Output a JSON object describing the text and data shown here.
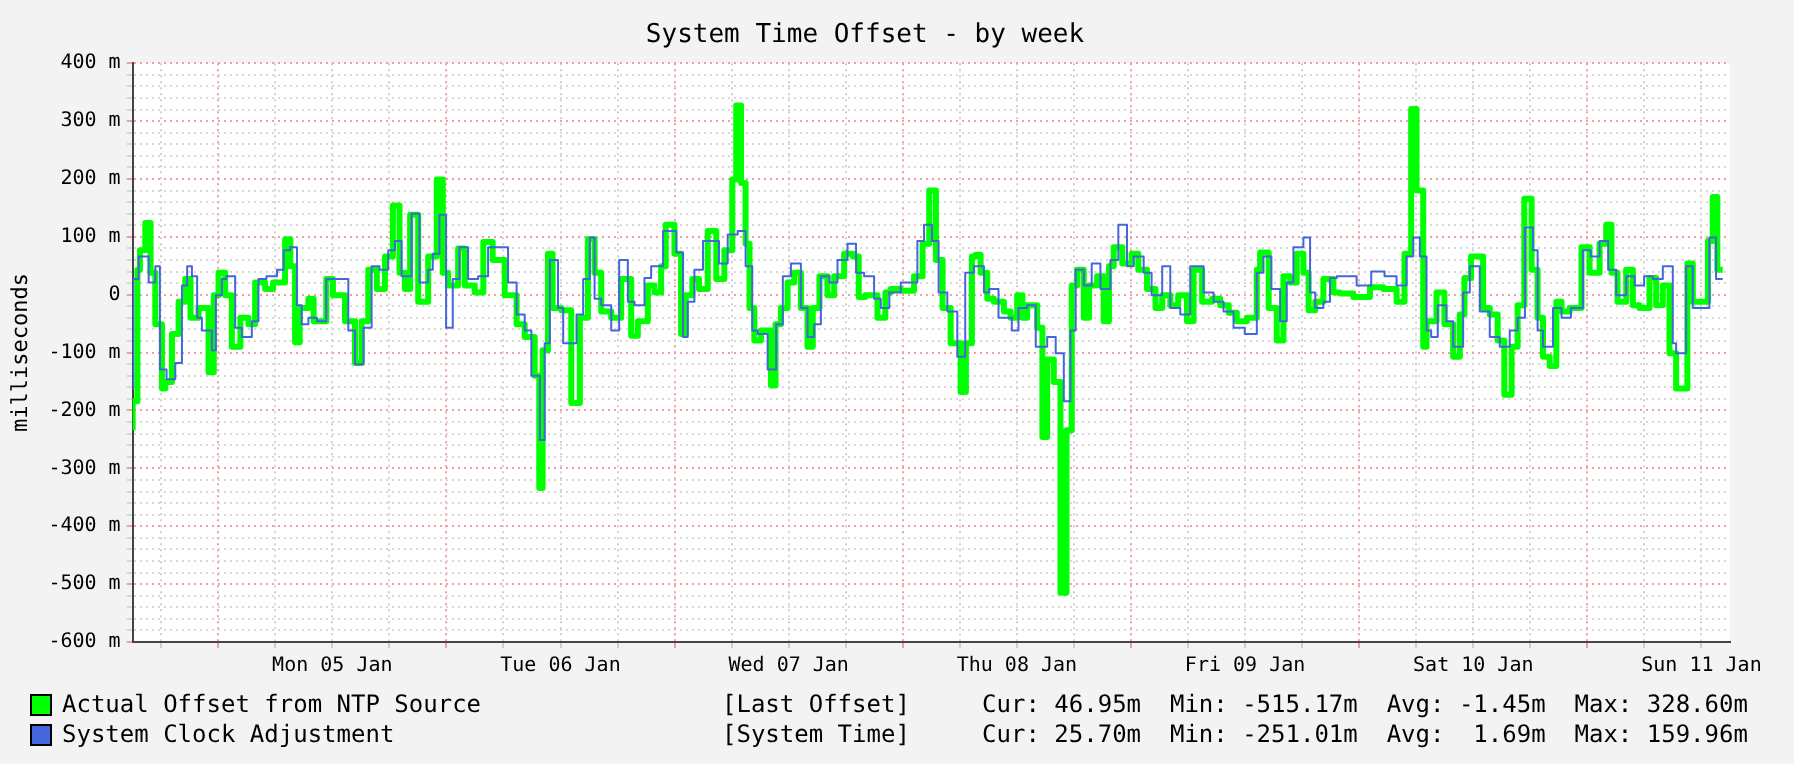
{
  "chart_data": {
    "type": "step",
    "title": "System Time Offset - by week",
    "ylabel": "milliseconds",
    "xlim": [
      "--01-04T15:00",
      "--01-11T15:00"
    ],
    "xticks": [
      {
        "value": "--01-04T18:00",
        "label": null
      },
      {
        "value": "--01-05T00:00",
        "label": null
      },
      {
        "value": "--01-05T06:00",
        "label": null
      },
      {
        "value": "--01-05T12:00",
        "label": "Mon 05 Jan"
      },
      {
        "value": "--01-05T18:00",
        "label": null
      },
      {
        "value": "--01-06T00:00",
        "label": null
      },
      {
        "value": "--01-06T06:00",
        "label": null
      },
      {
        "value": "--01-06T12:00",
        "label": "Tue 06 Jan"
      },
      {
        "value": "--01-06T18:00",
        "label": null
      },
      {
        "value": "--01-07T00:00",
        "label": null
      },
      {
        "value": "--01-07T06:00",
        "label": null
      },
      {
        "value": "--01-07T12:00",
        "label": "Wed 07 Jan"
      },
      {
        "value": "--01-07T18:00",
        "label": null
      },
      {
        "value": "--01-08T00:00",
        "label": null
      },
      {
        "value": "--01-08T06:00",
        "label": null
      },
      {
        "value": "--01-08T12:00",
        "label": "Thu 08 Jan"
      },
      {
        "value": "--01-08T18:00",
        "label": null
      },
      {
        "value": "--01-09T00:00",
        "label": null
      },
      {
        "value": "--01-09T06:00",
        "label": null
      },
      {
        "value": "--01-09T12:00",
        "label": "Fri 09 Jan"
      },
      {
        "value": "--01-09T18:00",
        "label": null
      },
      {
        "value": "--01-10T00:00",
        "label": null
      },
      {
        "value": "--01-10T06:00",
        "label": null
      },
      {
        "value": "--01-10T12:00",
        "label": "Sat 10 Jan"
      },
      {
        "value": "--01-10T18:00",
        "label": null
      },
      {
        "value": "--01-11T00:00",
        "label": null
      },
      {
        "value": "--01-11T06:00",
        "label": null
      },
      {
        "value": "--01-11T12:00",
        "label": "Sun 11 Jan"
      }
    ],
    "ylim": [
      -600,
      400
    ],
    "yticks": [
      {
        "value": -600,
        "label": "-600 m"
      },
      {
        "value": -580,
        "label": null
      },
      {
        "value": -560,
        "label": null
      },
      {
        "value": -540,
        "label": null
      },
      {
        "value": -520,
        "label": null
      },
      {
        "value": -500,
        "label": "-500 m"
      },
      {
        "value": -480,
        "label": null
      },
      {
        "value": -460,
        "label": null
      },
      {
        "value": -440,
        "label": null
      },
      {
        "value": -420,
        "label": null
      },
      {
        "value": -400,
        "label": "-400 m"
      },
      {
        "value": -380,
        "label": null
      },
      {
        "value": -360,
        "label": null
      },
      {
        "value": -340,
        "label": null
      },
      {
        "value": -320,
        "label": null
      },
      {
        "value": -300,
        "label": "-300 m"
      },
      {
        "value": -280,
        "label": null
      },
      {
        "value": -260,
        "label": null
      },
      {
        "value": -240,
        "label": null
      },
      {
        "value": -220,
        "label": null
      },
      {
        "value": -200,
        "label": "-200 m"
      },
      {
        "value": -180,
        "label": null
      },
      {
        "value": -160,
        "label": null
      },
      {
        "value": -140,
        "label": null
      },
      {
        "value": -120,
        "label": null
      },
      {
        "value": -100,
        "label": "-100 m"
      },
      {
        "value": -80,
        "label": null
      },
      {
        "value": -60,
        "label": null
      },
      {
        "value": -40,
        "label": null
      },
      {
        "value": -20,
        "label": null
      },
      0,
      {
        "value": 20,
        "label": null
      },
      {
        "value": 40,
        "label": null
      },
      {
        "value": 60,
        "label": null
      },
      {
        "value": 80,
        "label": null
      },
      {
        "value": 100,
        "label": "100 m"
      },
      {
        "value": 120,
        "label": null
      },
      {
        "value": 140,
        "label": null
      },
      {
        "value": 160,
        "label": null
      },
      {
        "value": 180,
        "label": null
      },
      {
        "value": 200,
        "label": "200 m"
      },
      {
        "value": 220,
        "label": null
      },
      {
        "value": 240,
        "label": null
      },
      {
        "value": 260,
        "label": null
      },
      {
        "value": 280,
        "label": null
      },
      {
        "value": 300,
        "label": "300 m"
      },
      {
        "value": 320,
        "label": null
      },
      {
        "value": 340,
        "label": null
      },
      {
        "value": 360,
        "label": null
      },
      {
        "value": 380,
        "label": null
      },
      {
        "value": 400,
        "label": "400 m"
      }
    ],
    "grid": true,
    "legend": "bottom",
    "annotations": [
      "[Last Offset]     Cur: 46.95m  Min: -515.17m  Avg: -1.45m  Max: 328.60m",
      "[System Time]     Cur: 25.70m  Min: -251.01m  Avg:  1.69m  Max: 159.96m"
    ],
    "series": [
      {
        "name": "Actual Offset from NTP Source",
        "color": "#00ff00",
        "x": [
          "--01-04T15:00",
          "--01-04T15:30",
          "--01-04T15:46",
          "--01-04T16:20",
          "--01-04T16:53",
          "--01-04T17:23",
          "--01-04T18:05",
          "--01-04T18:26",
          "--01-04T19:08",
          "--01-04T19:50",
          "--01-04T20:32",
          "--01-04T21:05",
          "--01-04T21:56",
          "--01-04T22:59",
          "--01-04T23:32",
          "--01-05T00:02",
          "--01-05T00:44",
          "--01-05T01:26",
          "--01-05T02:20",
          "--01-05T03:11",
          "--01-05T03:53",
          "--01-05T04:56",
          "--01-05T05:46",
          "--01-05T07:02",
          "--01-05T07:35",
          "--01-05T08:05",
          "--01-05T08:34",
          "--01-05T09:29",
          "--01-05T10:02",
          "--01-05T11:22",
          "--01-05T12:04",
          "--01-05T13:20",
          "--01-05T14:23",
          "--01-05T15:05",
          "--01-05T15:47",
          "--01-05T16:41",
          "--01-05T17:32",
          "--01-05T18:22",
          "--01-05T19:04",
          "--01-05T19:38",
          "--01-05T20:11",
          "--01-05T21:02",
          "--01-05T22:05",
          "--01-05T22:59",
          "--01-05T23:37",
          "--01-06T00:11",
          "--01-06T01:14",
          "--01-06T01:56",
          "--01-06T02:59",
          "--01-06T03:53",
          "--01-06T04:52",
          "--01-06T06:08",
          "--01-06T07:23",
          "--01-06T08:14",
          "--01-06T09:17",
          "--01-06T09:46",
          "--01-06T10:07",
          "--01-06T10:41",
          "--01-06T11:10",
          "--01-06T12:05",
          "--01-06T13:08",
          "--01-06T14:02",
          "--01-06T14:53",
          "--01-06T15:35",
          "--01-06T16:17",
          "--01-06T17:20",
          "--01-06T18:23",
          "--01-06T19:26",
          "--01-06T20:08",
          "--01-06T21:11",
          "--01-06T21:53",
          "--01-06T22:35",
          "--01-06T23:04",
          "--01-06T23:59",
          "--01-07T00:41",
          "--01-07T01:10",
          "--01-07T01:52",
          "--01-07T02:34",
          "--01-07T03:29",
          "--01-07T04:23",
          "--01-07T05:14",
          "--01-07T06:04",
          "--01-07T06:29",
          "--01-07T06:59",
          "--01-07T07:28",
          "--01-07T07:53",
          "--01-07T08:23",
          "--01-07T09:05",
          "--01-07T10:08",
          "--01-07T10:37",
          "--01-07T11:11",
          "--01-07T11:53",
          "--01-07T12:35",
          "--01-07T13:17",
          "--01-07T13:59",
          "--01-07T14:32",
          "--01-07T15:14",
          "--01-07T16:05",
          "--01-07T16:47",
          "--01-07T17:50",
          "--01-07T18:44",
          "--01-07T19:22",
          "--01-07T20:04",
          "--01-07T21:20",
          "--01-07T22:10",
          "--01-07T22:44",
          "--01-07T23:47",
          "--01-08T01:11",
          "--01-08T02:05",
          "--01-08T02:47",
          "--01-08T03:29",
          "--01-08T04:11",
          "--01-08T05:02",
          "--01-08T06:05",
          "--01-08T06:38",
          "--01-08T07:16",
          "--01-08T07:41",
          "--01-08T08:11",
          "--01-08T08:53",
          "--01-08T09:35",
          "--01-08T10:38",
          "--01-08T11:20",
          "--01-08T12:02",
          "--01-08T12:35",
          "--01-08T13:05",
          "--01-08T14:08",
          "--01-08T14:41",
          "--01-08T15:11",
          "--01-08T15:53",
          "--01-08T16:35",
          "--01-08T17:13",
          "--01-08T17:46",
          "--01-08T18:20",
          "--01-08T19:02",
          "--01-08T19:35",
          "--01-08T20:26",
          "--01-08T21:08",
          "--01-08T21:41",
          "--01-08T22:11",
          "--01-08T23:05",
          "--01-09T00:04",
          "--01-09T00:46",
          "--01-09T01:41",
          "--01-09T02:35",
          "--01-09T03:17",
          "--01-09T04:08",
          "--01-09T04:58",
          "--01-09T05:53",
          "--01-09T06:35",
          "--01-09T07:29",
          "--01-09T08:32",
          "--01-09T09:23",
          "--01-09T10:17",
          "--01-09T11:08",
          "--01-09T12:11",
          "--01-09T13:14",
          "--01-09T13:35",
          "--01-09T14:29",
          "--01-09T15:20",
          "--01-09T16:02",
          "--01-09T16:44",
          "--01-09T17:26",
          "--01-09T18:08",
          "--01-09T18:41",
          "--01-09T19:23",
          "--01-09T20:14",
          "--01-09T21:17",
          "--01-09T21:59",
          "--01-09T23:23",
          "--01-10T01:08",
          "--01-10T02:32",
          "--01-10T03:56",
          "--01-10T04:46",
          "--01-10T05:28",
          "--01-10T06:02",
          "--01-10T06:44",
          "--01-10T07:05",
          "--01-10T08:08",
          "--01-10T08:58",
          "--01-10T09:53",
          "--01-10T10:35",
          "--01-10T11:04",
          "--01-10T11:46",
          "--01-10T13:02",
          "--01-10T13:44",
          "--01-10T14:34",
          "--01-10T15:16",
          "--01-10T16:02",
          "--01-10T16:40",
          "--01-10T17:22",
          "--01-10T18:08",
          "--01-10T18:46",
          "--01-10T19:20",
          "--01-10T20:02",
          "--01-10T20:44",
          "--01-10T21:17",
          "--01-10T22:08",
          "--01-10T23:23",
          "--01-11T00:14",
          "--01-11T01:17",
          "--01-11T01:59",
          "--01-11T02:32",
          "--01-11T03:10",
          "--01-11T04:05",
          "--01-11T04:47",
          "--01-11T05:29",
          "--01-11T06:32",
          "--01-11T07:14",
          "--01-11T07:56",
          "--01-11T08:38",
          "--01-11T09:20",
          "--01-11T10:31",
          "--01-11T11:05",
          "--01-11T11:47",
          "--01-11T12:41",
          "--01-11T13:11",
          "--01-11T13:40",
          "--01-11T14:14"
        ],
        "values": [
          -234,
          -184,
          43,
          77,
          124,
          38,
          -51,
          -162,
          -151,
          -68,
          -12,
          27,
          -40,
          -23,
          -134,
          -1,
          38,
          -1,
          -90,
          -40,
          -51,
          21,
          10,
          21,
          96,
          49,
          -82,
          -23,
          -7,
          -46,
          27,
          -1,
          -46,
          -118,
          -46,
          43,
          10,
          66,
          154,
          38,
          10,
          138,
          -12,
          66,
          199,
          38,
          16,
          80,
          16,
          4,
          91,
          60,
          -1,
          -51,
          -73,
          -140,
          -334,
          -96,
          71,
          -23,
          -27,
          -187,
          -40,
          96,
          38,
          -29,
          -40,
          27,
          -71,
          -46,
          16,
          4,
          49,
          121,
          71,
          -68,
          -1,
          27,
          10,
          110,
          27,
          77,
          199,
          327,
          193,
          88,
          -23,
          -79,
          -62,
          -157,
          -51,
          -23,
          21,
          38,
          -23,
          -90,
          -23,
          32,
          -1,
          32,
          71,
          66,
          -4,
          -1,
          -40,
          4,
          10,
          7,
          32,
          88,
          180,
          60,
          -23,
          -84,
          -168,
          -84,
          66,
          69,
          38,
          -7,
          -12,
          -29,
          -40,
          -1,
          -40,
          -18,
          -57,
          -246,
          -112,
          -151,
          -515,
          -234,
          16,
          43,
          -40,
          16,
          32,
          -46,
          49,
          82,
          54,
          71,
          43,
          10,
          -23,
          -1,
          -18,
          -1,
          -46,
          43,
          -12,
          -7,
          -18,
          -31,
          -46,
          -40,
          43,
          73,
          -23,
          -79,
          32,
          21,
          71,
          38,
          -27,
          -12,
          27,
          4,
          2,
          -4,
          13,
          10,
          -12,
          71,
          321,
          180,
          -90,
          -46,
          4,
          -51,
          -107,
          -34,
          29,
          66,
          -23,
          -34,
          -79,
          -173,
          -90,
          -18,
          166,
          43,
          -40,
          -107,
          -123,
          -12,
          -29,
          -23,
          82,
          38,
          88,
          121,
          38,
          -12,
          43,
          -18,
          -23,
          29,
          -18,
          16,
          -101,
          -162,
          54,
          -12,
          -12,
          93,
          169,
          43
        ]
      },
      {
        "name": "System Clock Adjustment",
        "color": "#4466dd",
        "x": [
          "--01-04T15:00",
          "--01-04T15:04",
          "--01-04T15:38",
          "--01-04T16:41",
          "--01-04T17:23",
          "--01-04T17:52",
          "--01-04T18:34",
          "--01-04T19:29",
          "--01-04T20:11",
          "--01-04T20:44",
          "--01-04T21:14",
          "--01-04T21:47",
          "--01-04T22:17",
          "--01-04T23:20",
          "--01-04T23:45",
          "--01-05T00:23",
          "--01-05T00:52",
          "--01-05T01:47",
          "--01-05T02:29",
          "--01-05T03:32",
          "--01-05T04:14",
          "--01-05T05:04",
          "--01-05T06:11",
          "--01-05T06:53",
          "--01-05T07:35",
          "--01-05T08:17",
          "--01-05T08:47",
          "--01-05T09:29",
          "--01-05T10:23",
          "--01-05T11:22",
          "--01-05T12:29",
          "--01-05T13:41",
          "--01-05T14:23",
          "--01-05T15:17",
          "--01-05T16:08",
          "--01-05T16:58",
          "--01-05T17:53",
          "--01-05T18:35",
          "--01-05T19:17",
          "--01-05T20:20",
          "--01-05T21:10",
          "--01-05T22:05",
          "--01-05T22:34",
          "--01-05T23:16",
          "--01-05T23:58",
          "--01-06T00:40",
          "--01-06T01:22",
          "--01-06T02:17",
          "--01-06T03:20",
          "--01-06T04:23",
          "--01-06T05:26",
          "--01-06T06:29",
          "--01-06T07:23",
          "--01-06T08:14",
          "--01-06T08:56",
          "--01-06T09:50",
          "--01-06T10:20",
          "--01-06T10:53",
          "--01-06T11:44",
          "--01-06T12:17",
          "--01-06T13:41",
          "--01-06T14:23",
          "--01-06T15:05",
          "--01-06T15:35",
          "--01-06T16:17",
          "--01-06T17:20",
          "--01-06T18:10",
          "--01-06T19:05",
          "--01-06T19:47",
          "--01-06T20:50",
          "--01-06T21:32",
          "--01-06T22:47",
          "--01-07T00:11",
          "--01-07T00:53",
          "--01-07T01:23",
          "--01-07T02:05",
          "--01-07T02:59",
          "--01-07T04:40",
          "--01-07T05:35",
          "--01-07T06:38",
          "--01-07T07:28",
          "--01-07T08:10",
          "--01-07T08:44",
          "--01-07T09:47",
          "--01-07T10:41",
          "--01-07T11:23",
          "--01-07T12:14",
          "--01-07T13:17",
          "--01-07T13:59",
          "--01-07T14:41",
          "--01-07T15:23",
          "--01-07T16:17",
          "--01-07T17:08",
          "--01-07T18:11",
          "--01-07T19:05",
          "--01-07T19:56",
          "--01-07T20:59",
          "--01-07T21:41",
          "--01-07T22:35",
          "--01-07T23:47",
          "--01-08T01:32",
          "--01-08T02:14",
          "--01-08T03:04",
          "--01-08T03:46",
          "--01-08T04:41",
          "--01-08T05:44",
          "--01-08T06:34",
          "--01-08T07:29",
          "--01-08T08:32",
          "--01-08T09:05",
          "--01-08T10:04",
          "--01-08T11:28",
          "--01-08T12:10",
          "--01-08T13:05",
          "--01-08T13:59",
          "--01-08T15:11",
          "--01-08T16:05",
          "--01-08T16:56",
          "--01-08T17:38",
          "--01-08T18:11",
          "--01-08T19:02",
          "--01-08T19:52",
          "--01-08T20:47",
          "--01-08T21:50",
          "--01-08T22:40",
          "--01-08T23:35",
          "--01-09T00:17",
          "--01-09T01:20",
          "--01-09T02:10",
          "--01-09T03:17",
          "--01-09T04:08",
          "--01-09T05:11",
          "--01-09T06:14",
          "--01-09T07:38",
          "--01-09T08:41",
          "--01-09T09:44",
          "--01-09T10:47",
          "--01-09T11:58",
          "--01-09T13:14",
          "--01-09T13:56",
          "--01-09T14:46",
          "--01-09T15:41",
          "--01-09T16:23",
          "--01-09T17:05",
          "--01-09T18:08",
          "--01-09T18:50",
          "--01-09T19:23",
          "--01-09T20:14",
          "--01-09T20:56",
          "--01-09T21:38",
          "--01-09T23:44",
          "--01-10T01:16",
          "--01-10T02:40",
          "--01-10T03:56",
          "--01-10T04:59",
          "--01-10T05:41",
          "--01-10T06:23",
          "--01-10T07:05",
          "--01-10T07:34",
          "--01-10T08:16",
          "--01-10T09:11",
          "--01-10T09:53",
          "--01-10T10:56",
          "--01-10T11:38",
          "--01-10T12:41",
          "--01-10T13:44",
          "--01-10T14:47",
          "--01-10T15:50",
          "--01-10T16:40",
          "--01-10T17:26",
          "--01-10T18:17",
          "--01-10T18:46",
          "--01-10T19:20",
          "--01-10T20:23",
          "--01-10T21:17",
          "--01-10T22:16",
          "--01-10T23:32",
          "--01-11T00:22",
          "--01-11T01:17",
          "--01-11T02:11",
          "--01-11T03:02",
          "--01-11T04:05",
          "--01-11T04:59",
          "--01-11T05:58",
          "--01-11T06:53",
          "--01-11T07:56",
          "--01-11T08:59",
          "--01-11T09:20",
          "--01-11T10:23",
          "--01-11T11:05",
          "--01-11T11:47",
          "--01-11T12:50",
          "--01-11T13:32",
          "--01-11T14:14"
        ],
        "values": [
          -68,
          -162,
          27,
          66,
          21,
          49,
          -129,
          -146,
          -118,
          16,
          49,
          32,
          -40,
          -62,
          -96,
          -1,
          27,
          32,
          -57,
          -73,
          -46,
          27,
          32,
          43,
          77,
          82,
          -18,
          -51,
          -40,
          -46,
          27,
          27,
          -62,
          -120,
          -57,
          49,
          43,
          77,
          93,
          32,
          140,
          21,
          43,
          71,
          138,
          -57,
          27,
          82,
          27,
          32,
          82,
          82,
          21,
          -34,
          -62,
          -140,
          -251,
          -84,
          60,
          -23,
          -84,
          -34,
          27,
          99,
          -7,
          -18,
          -62,
          60,
          -12,
          -18,
          29,
          49,
          110,
          73,
          -73,
          -12,
          43,
          93,
          54,
          104,
          110,
          49,
          -62,
          -68,
          -129,
          -51,
          32,
          54,
          -23,
          -73,
          -51,
          32,
          21,
          60,
          88,
          38,
          32,
          -7,
          -23,
          4,
          21,
          93,
          121,
          93,
          4,
          -29,
          -107,
          38,
          49,
          4,
          10,
          -40,
          -62,
          -23,
          -18,
          -90,
          -73,
          -101,
          -184,
          -62,
          43,
          16,
          54,
          10,
          60,
          121,
          49,
          66,
          38,
          -1,
          49,
          -23,
          -34,
          49,
          4,
          -12,
          -29,
          -57,
          -68,
          38,
          66,
          10,
          -46,
          21,
          82,
          99,
          4,
          -23,
          -12,
          29,
          32,
          16,
          40,
          32,
          16,
          66,
          99,
          66,
          -62,
          -73,
          -18,
          -46,
          -90,
          4,
          49,
          -29,
          -73,
          -90,
          -62,
          -40,
          116,
          77,
          -62,
          -90,
          -23,
          -40,
          -23,
          77,
          66,
          93,
          43,
          -1,
          32,
          16,
          32,
          27,
          49,
          -84,
          -101,
          49,
          -23,
          -23,
          99,
          27
        ]
      }
    ]
  }
}
